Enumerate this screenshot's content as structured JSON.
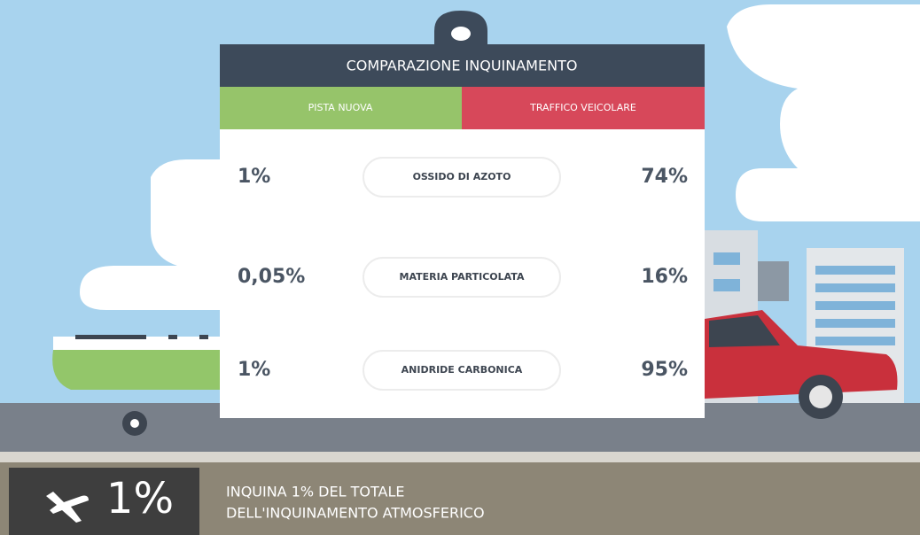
{
  "card": {
    "title": "COMPARAZIONE INQUINAMENTO",
    "left_header": "PISTA NUOVA",
    "right_header": "TRAFFICO VEICOLARE",
    "rows": [
      {
        "left": "1%",
        "label": "OSSIDO DI AZOTO",
        "right": "74%"
      },
      {
        "left": "0,05%",
        "label": "MATERIA PARTICOLATA",
        "right": "16%"
      },
      {
        "left": "1%",
        "label": "ANIDRIDE CARBONICA",
        "right": "95%"
      }
    ]
  },
  "footer": {
    "big": "1%",
    "lines": [
      "INQUINA 1% DEL TOTALE",
      "DELL'INQUINAMENTO ATMOSFERICO"
    ]
  }
}
